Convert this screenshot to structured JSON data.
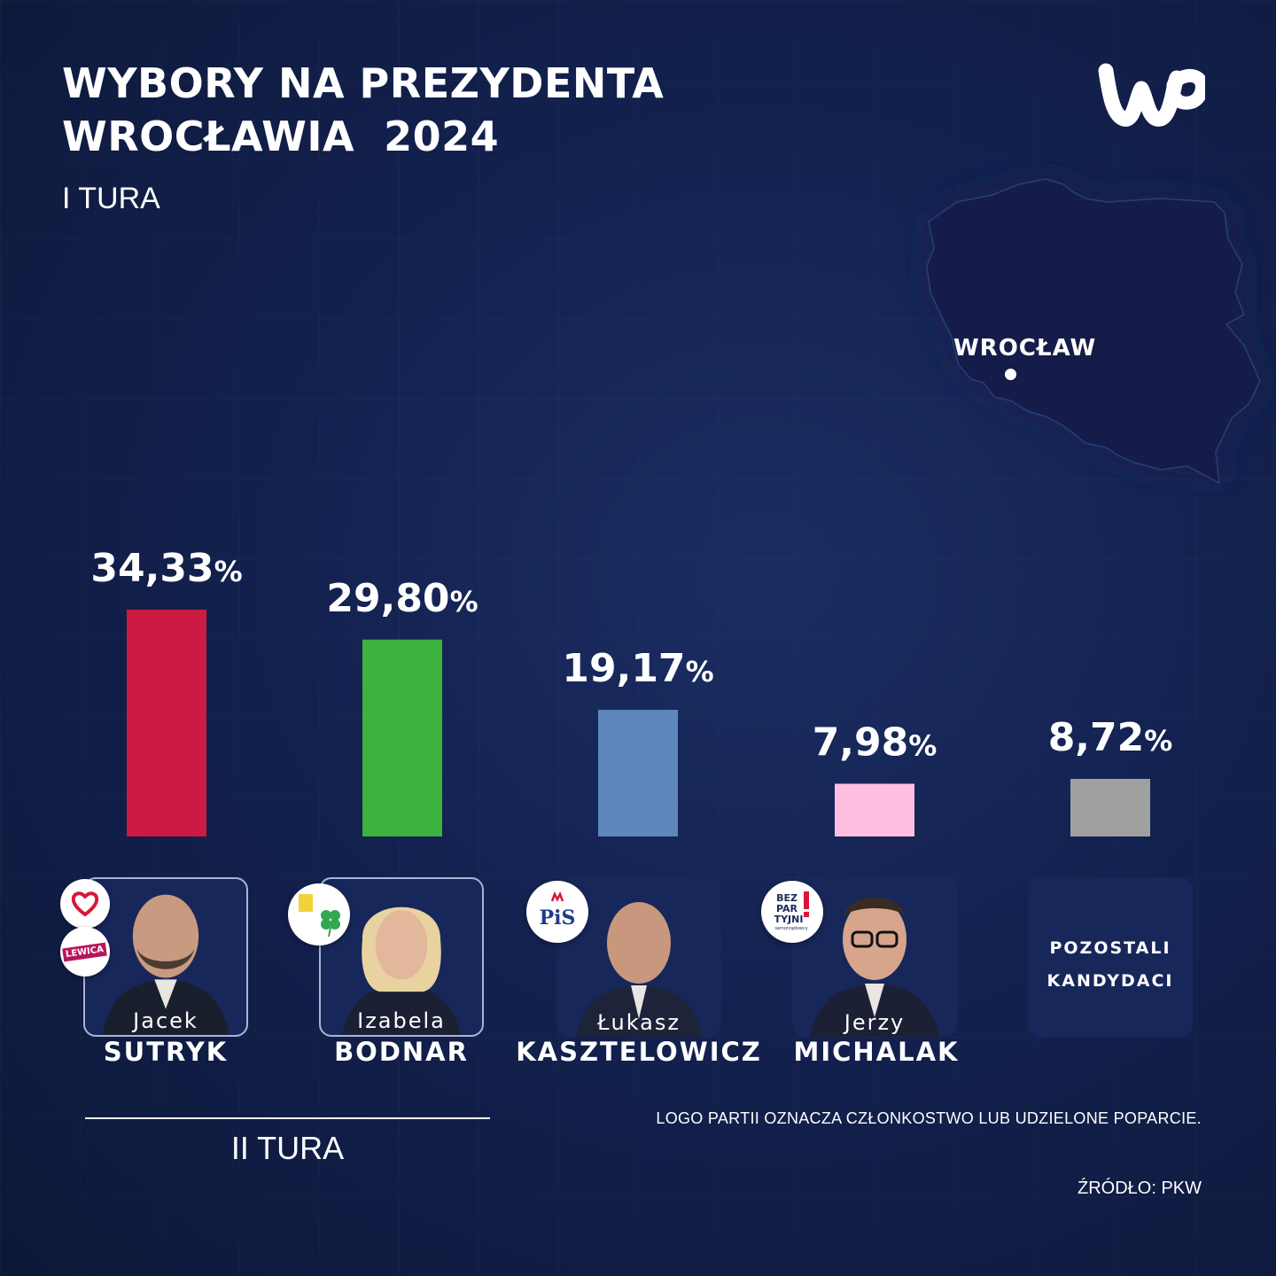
{
  "header": {
    "title_line1": "WYBORY NA PREZYDENTA",
    "title_line2": "WROCŁAWIA  2024",
    "round": "I TURA"
  },
  "brand": {
    "logo_icon": "wp-logo",
    "color": "#ffffff"
  },
  "map": {
    "city": "WROCŁAW",
    "icon": "poland-map"
  },
  "chart_data": {
    "type": "bar",
    "title": "WYBORY NA PREZYDENTA WROCŁAWIA  2024",
    "subtitle": "I TURA",
    "categories": [
      "Jacek SUTRYK",
      "Izabela BODNAR",
      "Łukasz KASZTELOWICZ",
      "Jerzy MICHALAK",
      "POZOSTALI KANDYDACI"
    ],
    "values": [
      34.33,
      29.8,
      19.17,
      7.98,
      8.72
    ],
    "value_labels": [
      "34,33",
      "29,80",
      "19,17",
      "7,98",
      "8,72"
    ],
    "unit": "%",
    "colors": [
      "#cc1a43",
      "#3db23f",
      "#5e87bd",
      "#ffbfe0",
      "#a0a0a0"
    ],
    "ylim": [
      0,
      34.33
    ],
    "grid": false,
    "legend": "none"
  },
  "candidates": [
    {
      "first_name": "Jacek",
      "last_name": "SUTRYK",
      "badges": [
        "heart-logo-icon",
        "lewica-logo-icon"
      ],
      "badge_text": "LEWICA",
      "advances": true
    },
    {
      "first_name": "Izabela",
      "last_name": "BODNAR",
      "badges": [
        "clover-logo-icon"
      ],
      "advances": true
    },
    {
      "first_name": "Łukasz",
      "last_name": "KASZTELOWICZ",
      "badges": [
        "pis-logo-icon"
      ],
      "badge_text": "PiS",
      "advances": false
    },
    {
      "first_name": "Jerzy",
      "last_name": "MICHALAK",
      "badges": [
        "bezpartyjni-logo-icon"
      ],
      "badge_text": [
        "BEZ",
        "PAR",
        "TYJNI",
        "samorządowcy"
      ],
      "advances": false
    }
  ],
  "others": {
    "line1": "POZOSTALI",
    "line2": "KANDYDACI"
  },
  "second_round_label": "II TURA",
  "footnote": "LOGO PARTII OZNACZA CZŁONKOSTWO LUB UDZIELONE POPARCIE.",
  "source": "ŹRÓDŁO: PKW"
}
